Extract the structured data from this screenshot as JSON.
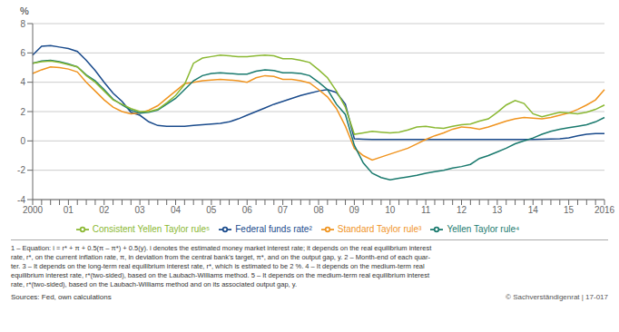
{
  "chart_data": {
    "type": "line",
    "ylabel": "%",
    "categories": [
      "2000",
      null,
      null,
      null,
      "01",
      null,
      null,
      null,
      "02",
      null,
      null,
      null,
      "03",
      null,
      null,
      null,
      "04",
      null,
      null,
      null,
      "05",
      null,
      null,
      null,
      "06",
      null,
      null,
      null,
      "07",
      null,
      null,
      null,
      "08",
      null,
      null,
      null,
      "09",
      null,
      null,
      null,
      "10",
      null,
      null,
      null,
      "11",
      null,
      null,
      null,
      "12",
      null,
      null,
      null,
      "13",
      null,
      null,
      null,
      "14",
      null,
      null,
      null,
      "15",
      null,
      null,
      null,
      "2016"
    ],
    "ylim": [
      -4,
      8
    ],
    "yticks": [
      -4,
      -2,
      0,
      2,
      4,
      6,
      8
    ],
    "grid": true,
    "series": [
      {
        "name": "Federal funds rate²",
        "color": "#1a4b8c",
        "values": [
          5.85,
          6.45,
          6.5,
          6.4,
          6.3,
          6.1,
          5.5,
          4.8,
          4.0,
          3.25,
          2.7,
          1.95,
          1.75,
          1.3,
          1.05,
          1.0,
          1.0,
          1.0,
          1.05,
          1.1,
          1.15,
          1.2,
          1.3,
          1.5,
          1.75,
          2.0,
          2.25,
          2.5,
          2.7,
          2.9,
          3.1,
          3.25,
          3.4,
          3.5,
          3.3,
          2.5,
          0.15,
          0.12,
          0.1,
          0.1,
          0.1,
          0.1,
          0.1,
          0.1,
          0.1,
          0.1,
          0.1,
          0.1,
          0.1,
          0.1,
          0.1,
          0.1,
          0.1,
          0.1,
          0.1,
          0.1,
          0.1,
          0.12,
          0.13,
          0.14,
          0.2,
          0.35,
          0.45,
          0.5,
          0.5
        ]
      },
      {
        "name": "Standard Taylor rule³",
        "color": "#f0941f",
        "values": [
          4.6,
          4.85,
          5.05,
          5.0,
          4.9,
          4.7,
          4.0,
          3.4,
          2.8,
          2.3,
          2.0,
          1.85,
          1.9,
          2.1,
          2.4,
          2.9,
          3.4,
          3.9,
          4.0,
          4.1,
          4.15,
          4.2,
          4.15,
          4.1,
          4.0,
          4.3,
          4.45,
          4.4,
          4.2,
          4.2,
          4.1,
          3.95,
          3.5,
          3.0,
          2.2,
          1.0,
          -0.5,
          -1.0,
          -1.3,
          -1.1,
          -0.9,
          -0.7,
          -0.5,
          -0.2,
          0.1,
          0.35,
          0.55,
          0.8,
          0.95,
          0.9,
          0.8,
          0.95,
          1.15,
          1.35,
          1.5,
          1.6,
          1.55,
          1.5,
          1.6,
          1.75,
          1.9,
          2.15,
          2.45,
          2.8,
          3.5
        ]
      },
      {
        "name": "Yellen Taylor rule⁴",
        "color": "#1a7a6e",
        "values": [
          5.3,
          5.45,
          5.5,
          5.4,
          5.25,
          5.05,
          4.5,
          4.1,
          3.5,
          2.85,
          2.45,
          2.1,
          1.9,
          1.95,
          2.1,
          2.5,
          2.9,
          3.5,
          4.1,
          4.45,
          4.6,
          4.65,
          4.6,
          4.55,
          4.55,
          4.75,
          4.85,
          4.8,
          4.65,
          4.65,
          4.6,
          4.45,
          4.0,
          3.5,
          2.5,
          1.8,
          -0.3,
          -1.5,
          -2.2,
          -2.5,
          -2.65,
          -2.55,
          -2.45,
          -2.35,
          -2.2,
          -2.1,
          -2.0,
          -1.85,
          -1.75,
          -1.6,
          -1.2,
          -1.0,
          -0.75,
          -0.5,
          -0.2,
          0.0,
          0.2,
          0.45,
          0.65,
          0.8,
          0.9,
          1.0,
          1.1,
          1.3,
          1.6
        ]
      },
      {
        "name": "Consistent Yellen Taylor rule⁵",
        "color": "#8ab832",
        "values": [
          5.3,
          5.4,
          5.45,
          5.35,
          5.2,
          5.05,
          4.45,
          4.0,
          3.4,
          2.8,
          2.5,
          2.2,
          2.0,
          2.0,
          2.15,
          2.6,
          3.1,
          3.85,
          5.3,
          5.65,
          5.75,
          5.85,
          5.8,
          5.75,
          5.75,
          5.8,
          5.85,
          5.8,
          5.6,
          5.6,
          5.5,
          5.35,
          4.85,
          4.3,
          3.4,
          2.3,
          0.45,
          0.55,
          0.65,
          0.6,
          0.55,
          0.6,
          0.75,
          0.95,
          1.0,
          0.9,
          0.85,
          1.0,
          1.1,
          1.15,
          1.35,
          1.5,
          1.95,
          2.45,
          2.75,
          2.55,
          1.85,
          1.65,
          1.8,
          1.95,
          1.9,
          1.85,
          1.95,
          2.15,
          2.45
        ]
      }
    ],
    "footnotes": [
      "1 – Equation: i = r* + π + 0.5(π – π*) + 0.5(y). i denotes the estimated money market interest rate; it depends on the real equilibrium interest",
      "rate, r*, on the current inflation rate, π, in deviation from the central bank’s target, π*, and on the output gap, y.  2 – Month-end of each quar-",
      "ter.  3 – It depends on the long-term real equilibrium interest rate, r*, which is estimated to be 2 %.  4 – It depends on the medium-term real",
      "equilibrium interest rate, r*(two-sided), based on the Laubach-Williams method.  5 – It depends on the medium-term real equilibrium interest",
      "rate, r*(two-sided), based on the Laubach-Williams method and on its associated output gap, y."
    ],
    "sources": [
      "Sources: Fed, own calculations",
      "© Sachverständigenrat | 17-017"
    ]
  }
}
